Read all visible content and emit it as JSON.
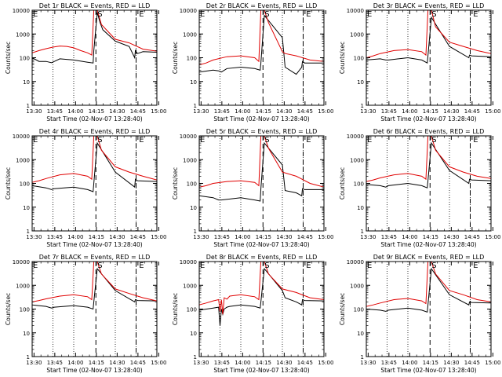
{
  "figure": {
    "x_axis_title": "Start Time (02-Nov-07 13:28:40)",
    "y_axis_title": "Counts/sec",
    "marker_start": "S",
    "marker_end": "E"
  },
  "colors": {
    "events": "#000000",
    "lld": "#e00000"
  },
  "chart_data": [
    {
      "type": "line",
      "title": "Det 1r BLACK = Events, RED = LLD",
      "xlabel": "Start Time (02-Nov-07 13:28:40)",
      "ylabel": "Counts/sec",
      "xlim": [
        0,
        5400
      ],
      "ylim": [
        1,
        10000
      ],
      "yscale": "log",
      "x_tick_labels": [
        "13:30",
        "13:45",
        "14:00",
        "14:15",
        "14:30",
        "14:45",
        "15:00"
      ],
      "y_tick_labels": [
        "1",
        "10",
        "100",
        "1000",
        "10000"
      ],
      "vlines_dotted_min": [
        15,
        30,
        60,
        75
      ],
      "vlines_dashed_min": [
        46,
        75
      ],
      "marker_S_min": 46,
      "marker_E_min": 76,
      "series": [
        {
          "name": "Events (BLACK)",
          "color": "#000000",
          "x": [
            0,
            5,
            10,
            14,
            16,
            20,
            30,
            40,
            44,
            44.5,
            47,
            49,
            51,
            60,
            70,
            74,
            74.5,
            76,
            80,
            90
          ],
          "y": [
            100,
            70,
            70,
            62,
            70,
            90,
            80,
            65,
            60,
            200,
            8000,
            3000,
            1500,
            500,
            300,
            100,
            200,
            150,
            180,
            170
          ]
        },
        {
          "name": "LLD (RED)",
          "color": "#e00000",
          "x": [
            0,
            5,
            10,
            15,
            20,
            25,
            30,
            35,
            40,
            43,
            44.5,
            47,
            50,
            60,
            70,
            80,
            90
          ],
          "y": [
            160,
            200,
            240,
            280,
            310,
            300,
            260,
            200,
            160,
            130,
            10000,
            10000,
            2500,
            600,
            420,
            230,
            190
          ]
        }
      ]
    },
    {
      "type": "line",
      "title": "Det 2r BLACK = Events, RED = LLD",
      "xlabel": "Start Time (02-Nov-07 13:28:40)",
      "ylabel": "Counts/sec",
      "xlim": [
        0,
        5400
      ],
      "ylim": [
        1,
        10000
      ],
      "yscale": "log",
      "x_tick_labels": [
        "13:30",
        "13:45",
        "14:00",
        "14:15",
        "14:30",
        "14:45",
        "15:00"
      ],
      "y_tick_labels": [
        "1",
        "10",
        "100",
        "1000",
        "10000"
      ],
      "vlines_dotted_min": [
        15,
        30,
        60,
        75
      ],
      "vlines_dashed_min": [
        46,
        75
      ],
      "marker_S_min": 46,
      "marker_E_min": 76,
      "series": [
        {
          "name": "Events (BLACK)",
          "color": "#000000",
          "x": [
            0,
            10,
            14,
            16,
            20,
            30,
            40,
            44,
            44.5,
            47,
            60,
            62,
            70,
            74,
            74.5,
            76,
            90
          ],
          "y": [
            25,
            30,
            28,
            25,
            35,
            40,
            35,
            30,
            60,
            6000,
            700,
            40,
            20,
            40,
            70,
            60,
            60
          ]
        },
        {
          "name": "LLD (RED)",
          "color": "#e00000",
          "x": [
            0,
            5,
            10,
            20,
            30,
            40,
            43,
            44.5,
            47,
            50,
            60,
            62,
            70,
            80,
            90
          ],
          "y": [
            50,
            60,
            80,
            110,
            120,
            100,
            70,
            10000,
            10000,
            3000,
            180,
            150,
            120,
            80,
            70
          ]
        }
      ]
    },
    {
      "type": "line",
      "title": "Det 3r BLACK = Events, RED = LLD",
      "xlabel": "Start Time (02-Nov-07 13:28:40)",
      "ylabel": "Counts/sec",
      "xlim": [
        0,
        5400
      ],
      "ylim": [
        1,
        10000
      ],
      "yscale": "log",
      "x_tick_labels": [
        "13:30",
        "13:45",
        "14:00",
        "14:15",
        "14:30",
        "14:45",
        "15:00"
      ],
      "y_tick_labels": [
        "1",
        "10",
        "100",
        "1000",
        "10000"
      ],
      "vlines_dotted_min": [
        15,
        30,
        60,
        75
      ],
      "vlines_dashed_min": [
        46,
        75
      ],
      "marker_S_min": 46,
      "marker_E_min": 76,
      "series": [
        {
          "name": "Events (BLACK)",
          "color": "#000000",
          "x": [
            0,
            10,
            14,
            16,
            30,
            40,
            44,
            44.5,
            47,
            60,
            74,
            74.5,
            76,
            90
          ],
          "y": [
            80,
            90,
            80,
            80,
            100,
            80,
            60,
            120,
            5000,
            300,
            100,
            130,
            120,
            110
          ]
        },
        {
          "name": "LLD (RED)",
          "color": "#e00000",
          "x": [
            0,
            5,
            10,
            20,
            30,
            40,
            43,
            44.5,
            47,
            50,
            60,
            70,
            80,
            90
          ],
          "y": [
            100,
            120,
            150,
            200,
            220,
            180,
            130,
            10000,
            10000,
            2000,
            450,
            300,
            200,
            150
          ]
        }
      ]
    },
    {
      "type": "line",
      "title": "Det 4r BLACK = Events, RED = LLD",
      "xlabel": "Start Time (02-Nov-07 13:28:40)",
      "ylabel": "Counts/sec",
      "xlim": [
        0,
        5400
      ],
      "ylim": [
        1,
        10000
      ],
      "yscale": "log",
      "x_tick_labels": [
        "13:30",
        "13:45",
        "14:00",
        "14:15",
        "14:30",
        "14:45",
        "15:00"
      ],
      "y_tick_labels": [
        "1",
        "10",
        "100",
        "1000",
        "10000"
      ],
      "vlines_dotted_min": [
        15,
        30,
        60,
        75
      ],
      "vlines_dashed_min": [
        46,
        75
      ],
      "marker_S_min": 46,
      "marker_E_min": 76,
      "series": [
        {
          "name": "Events (BLACK)",
          "color": "#000000",
          "x": [
            0,
            10,
            14,
            16,
            30,
            40,
            44,
            44.5,
            47,
            60,
            74,
            74.5,
            76,
            90
          ],
          "y": [
            80,
            65,
            55,
            60,
            70,
            55,
            45,
            100,
            5000,
            300,
            70,
            150,
            130,
            120
          ]
        },
        {
          "name": "LLD (RED)",
          "color": "#e00000",
          "x": [
            0,
            5,
            10,
            20,
            30,
            40,
            43,
            44.5,
            47,
            50,
            60,
            70,
            80,
            90
          ],
          "y": [
            110,
            130,
            160,
            230,
            260,
            200,
            150,
            10000,
            10000,
            2500,
            500,
            300,
            200,
            140
          ]
        }
      ]
    },
    {
      "type": "line",
      "title": "Det 5r BLACK = Events, RED = LLD",
      "xlabel": "Start Time (02-Nov-07 13:28:40)",
      "ylabel": "Counts/sec",
      "xlim": [
        0,
        5400
      ],
      "ylim": [
        1,
        10000
      ],
      "yscale": "log",
      "x_tick_labels": [
        "13:30",
        "13:45",
        "14:00",
        "14:15",
        "14:30",
        "14:45",
        "15:00"
      ],
      "y_tick_labels": [
        "1",
        "10",
        "100",
        "1000",
        "10000"
      ],
      "vlines_dotted_min": [
        15,
        30,
        60,
        75
      ],
      "vlines_dashed_min": [
        46,
        75
      ],
      "marker_S_min": 46,
      "marker_E_min": 76,
      "series": [
        {
          "name": "Events (BLACK)",
          "color": "#000000",
          "x": [
            0,
            10,
            14,
            16,
            30,
            40,
            44,
            44.5,
            47,
            60,
            62,
            70,
            74,
            74.5,
            76,
            90
          ],
          "y": [
            30,
            25,
            20,
            20,
            25,
            20,
            18,
            60,
            5000,
            600,
            50,
            40,
            30,
            60,
            55,
            55
          ]
        },
        {
          "name": "LLD (RED)",
          "color": "#e00000",
          "x": [
            0,
            5,
            10,
            20,
            30,
            40,
            43,
            44.5,
            47,
            50,
            60,
            70,
            80,
            90
          ],
          "y": [
            70,
            80,
            100,
            120,
            130,
            110,
            80,
            10000,
            10000,
            3000,
            300,
            200,
            100,
            70
          ]
        }
      ]
    },
    {
      "type": "line",
      "title": "Det 6r BLACK = Events, RED = LLD",
      "xlabel": "Start Time (02-Nov-07 13:28:40)",
      "ylabel": "Counts/sec",
      "xlim": [
        0,
        5400
      ],
      "ylim": [
        1,
        10000
      ],
      "yscale": "log",
      "x_tick_labels": [
        "13:30",
        "13:45",
        "14:00",
        "14:15",
        "14:30",
        "14:45",
        "15:00"
      ],
      "y_tick_labels": [
        "1",
        "10",
        "100",
        "1000",
        "10000"
      ],
      "vlines_dotted_min": [
        15,
        30,
        60,
        75
      ],
      "vlines_dashed_min": [
        46,
        75
      ],
      "marker_S_min": 46,
      "marker_E_min": 76,
      "series": [
        {
          "name": "Events (BLACK)",
          "color": "#000000",
          "x": [
            0,
            10,
            14,
            16,
            30,
            40,
            44,
            44.5,
            47,
            60,
            74,
            74.5,
            76,
            90
          ],
          "y": [
            90,
            80,
            70,
            80,
            100,
            80,
            65,
            130,
            5000,
            350,
            100,
            150,
            140,
            130
          ]
        },
        {
          "name": "LLD (RED)",
          "color": "#e00000",
          "x": [
            0,
            5,
            10,
            20,
            30,
            40,
            43,
            44.5,
            47,
            50,
            60,
            70,
            80,
            90
          ],
          "y": [
            120,
            140,
            170,
            230,
            260,
            200,
            150,
            10000,
            10000,
            2500,
            500,
            300,
            200,
            160
          ]
        }
      ]
    },
    {
      "type": "line",
      "title": "Det 7r BLACK = Events, RED = LLD",
      "xlabel": "Start Time (02-Nov-07 13:28:40)",
      "ylabel": "Counts/sec",
      "xlim": [
        0,
        5400
      ],
      "ylim": [
        1,
        10000
      ],
      "yscale": "log",
      "x_tick_labels": [
        "13:30",
        "13:45",
        "14:00",
        "14:15",
        "14:30",
        "14:45",
        "15:00"
      ],
      "y_tick_labels": [
        "1",
        "10",
        "100",
        "1000",
        "10000"
      ],
      "vlines_dotted_min": [
        15,
        30,
        60,
        75
      ],
      "vlines_dashed_min": [
        46,
        75
      ],
      "marker_S_min": 46,
      "marker_E_min": 76,
      "series": [
        {
          "name": "Events (BLACK)",
          "color": "#000000",
          "x": [
            0,
            10,
            14,
            16,
            30,
            40,
            44,
            44.5,
            47,
            60,
            74,
            74.5,
            76,
            90
          ],
          "y": [
            150,
            130,
            110,
            120,
            140,
            120,
            100,
            200,
            5000,
            600,
            200,
            250,
            230,
            220
          ]
        },
        {
          "name": "LLD (RED)",
          "color": "#e00000",
          "x": [
            0,
            5,
            10,
            20,
            30,
            40,
            43,
            44.5,
            47,
            50,
            60,
            70,
            80,
            90
          ],
          "y": [
            200,
            230,
            270,
            350,
            400,
            330,
            250,
            10000,
            10000,
            3000,
            700,
            450,
            300,
            220
          ]
        }
      ]
    },
    {
      "type": "line",
      "title": "Det 8r BLACK = Events, RED = LLD",
      "xlabel": "Start Time (02-Nov-07 13:28:40)",
      "ylabel": "Counts/sec",
      "xlim": [
        0,
        5400
      ],
      "ylim": [
        1,
        10000
      ],
      "yscale": "log",
      "x_tick_labels": [
        "13:30",
        "13:45",
        "14:00",
        "14:15",
        "14:30",
        "14:45",
        "15:00"
      ],
      "y_tick_labels": [
        "1",
        "10",
        "100",
        "1000",
        "10000"
      ],
      "vlines_dotted_min": [
        15,
        30,
        60,
        75
      ],
      "vlines_dashed_min": [
        46,
        75
      ],
      "marker_S_min": 46,
      "marker_E_min": 76,
      "series": [
        {
          "name": "Events (BLACK)",
          "color": "#000000",
          "x": [
            0,
            10,
            14,
            15,
            16,
            17,
            18,
            20,
            22,
            30,
            40,
            44,
            44.5,
            47,
            60,
            62,
            70,
            74,
            74.5,
            76,
            90
          ],
          "y": [
            90,
            110,
            120,
            20,
            100,
            60,
            100,
            120,
            130,
            150,
            130,
            110,
            200,
            5000,
            600,
            300,
            200,
            150,
            250,
            230,
            220
          ]
        },
        {
          "name": "LLD (RED)",
          "color": "#e00000",
          "x": [
            0,
            5,
            10,
            14,
            15,
            16,
            17,
            18,
            20,
            22,
            30,
            40,
            43,
            44.5,
            47,
            50,
            60,
            70,
            80,
            90
          ],
          "y": [
            150,
            180,
            220,
            250,
            80,
            250,
            60,
            300,
            260,
            350,
            400,
            330,
            250,
            10000,
            10000,
            3000,
            700,
            500,
            300,
            250
          ]
        }
      ]
    },
    {
      "type": "line",
      "title": "Det 9r BLACK = Events, RED = LLD",
      "xlabel": "Start Time (02-Nov-07 13:28:40)",
      "ylabel": "Counts/sec",
      "xlim": [
        0,
        5400
      ],
      "ylim": [
        1,
        10000
      ],
      "yscale": "log",
      "x_tick_labels": [
        "13:30",
        "13:45",
        "14:00",
        "14:15",
        "14:30",
        "14:45",
        "15:00"
      ],
      "y_tick_labels": [
        "1",
        "10",
        "100",
        "1000",
        "10000"
      ],
      "vlines_dotted_min": [
        15,
        30,
        60,
        75
      ],
      "vlines_dashed_min": [
        46,
        75
      ],
      "marker_S_min": 46,
      "marker_E_min": 76,
      "series": [
        {
          "name": "Events (BLACK)",
          "color": "#000000",
          "x": [
            0,
            10,
            14,
            16,
            30,
            40,
            44,
            44.5,
            47,
            60,
            74,
            74.5,
            76,
            90
          ],
          "y": [
            100,
            90,
            80,
            90,
            110,
            90,
            75,
            150,
            5000,
            400,
            150,
            200,
            190,
            180
          ]
        },
        {
          "name": "LLD (RED)",
          "color": "#e00000",
          "x": [
            0,
            5,
            10,
            20,
            30,
            40,
            43,
            44.5,
            47,
            50,
            60,
            70,
            80,
            90
          ],
          "y": [
            130,
            150,
            180,
            250,
            280,
            220,
            170,
            10000,
            10000,
            3000,
            600,
            400,
            250,
            200
          ]
        }
      ]
    }
  ]
}
